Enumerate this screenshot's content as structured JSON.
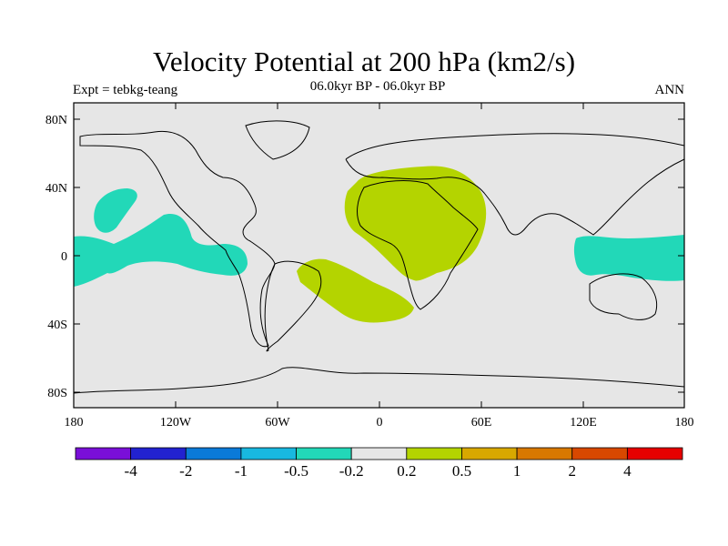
{
  "title": "Velocity Potential at 200 hPa (km2/s)",
  "subtitle_left": "Expt = tebkg-teang",
  "subtitle_center": "06.0kyr BP - 06.0kyr BP",
  "subtitle_right": "ANN",
  "axes": {
    "lat_labels": [
      "80N",
      "40N",
      "0",
      "40S",
      "80S"
    ],
    "lon_labels": [
      "180",
      "120W",
      "60W",
      "0",
      "60E",
      "120E",
      "180"
    ]
  },
  "colorbar": {
    "colors": [
      "#7a0fd8",
      "#2222d0",
      "#0a7ad8",
      "#18b8e0",
      "#22d8b8",
      "#e6e6e6",
      "#b4d400",
      "#d8a800",
      "#d87800",
      "#d84800",
      "#e60000"
    ],
    "labels": [
      "-4",
      "-2",
      "-1",
      "-0.5",
      "-0.2",
      "0.2",
      "0.5",
      "1",
      "2",
      "4"
    ]
  },
  "colors": {
    "ocean_background": "#e6e6e6",
    "positive_anomaly": "#b4d400",
    "negative_anomaly": "#22d8b8",
    "coastline": "#000000"
  },
  "regions": [
    {
      "name": "africa-positive-anomaly",
      "value_range": "0.2 to 0.5"
    },
    {
      "name": "south-atlantic-positive-anomaly",
      "value_range": "0.2 to 0.5"
    },
    {
      "name": "east-pacific-negative-anomaly",
      "value_range": "-0.5 to -0.2"
    },
    {
      "name": "maritime-continent-negative-anomaly",
      "value_range": "-0.5 to -0.2"
    }
  ]
}
